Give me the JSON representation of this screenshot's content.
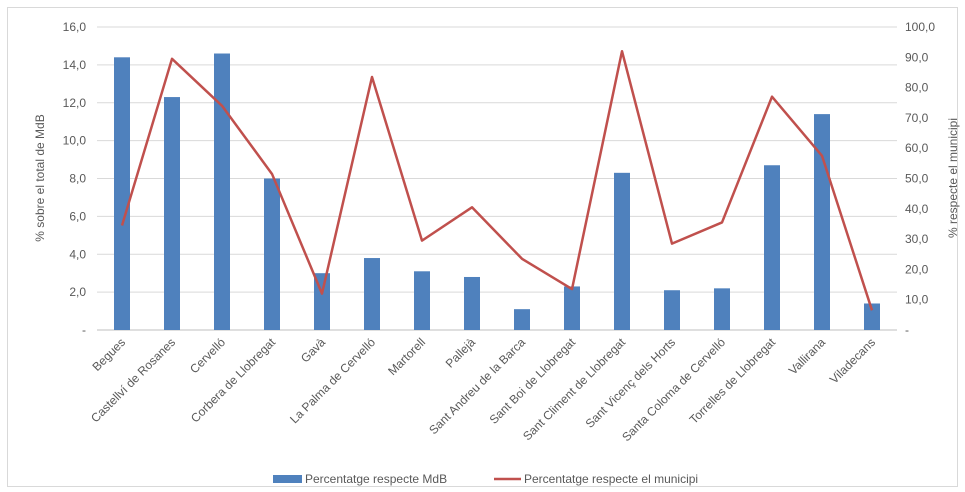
{
  "chart_data": {
    "type": "bar",
    "categories": [
      "Begues",
      "Castellví de Rosanes",
      "Cervelló",
      "Corbera de Llobregat",
      "Gavà",
      "La Palma de Cervelló",
      "Martorell",
      "Pallejà",
      "Sant Andreu de la Barca",
      "Sant Boi de Llobregat",
      "Sant Climent de Llobregat",
      "Sant Vicenç dels Horts",
      "Santa Coloma de Cervelló",
      "Torrelles de Llobregat",
      "Vallirana",
      "Viladecans"
    ],
    "series": [
      {
        "name": "Percentatge respecte MdB",
        "type": "bar",
        "axis": "left",
        "color": "#4f81bd",
        "values": [
          14.4,
          12.3,
          14.6,
          8.0,
          3.0,
          3.8,
          3.1,
          2.8,
          1.1,
          2.3,
          8.3,
          2.1,
          2.2,
          8.7,
          11.4,
          1.4
        ]
      },
      {
        "name": "Percentatge respecte el municipi",
        "type": "line",
        "axis": "right",
        "color": "#c0504d",
        "values": [
          34.5,
          89.5,
          74.0,
          51.5,
          12.0,
          83.5,
          29.5,
          40.5,
          23.5,
          13.5,
          92.0,
          28.5,
          35.5,
          77.0,
          57.5,
          6.5
        ]
      }
    ],
    "ylabel": "% sobre el total de MdB",
    "y2label": "% respecte el municipi",
    "ylim": [
      0,
      16
    ],
    "y2lim": [
      0,
      100
    ],
    "yticks": [
      "-",
      "2,0",
      "4,0",
      "6,0",
      "8,0",
      "10,0",
      "12,0",
      "14,0",
      "16,0"
    ],
    "y2ticks": [
      "-",
      "10,0",
      "20,0",
      "30,0",
      "40,0",
      "50,0",
      "60,0",
      "70,0",
      "80,0",
      "90,0",
      "100,0"
    ],
    "grid": true,
    "legend_position": "bottom"
  }
}
